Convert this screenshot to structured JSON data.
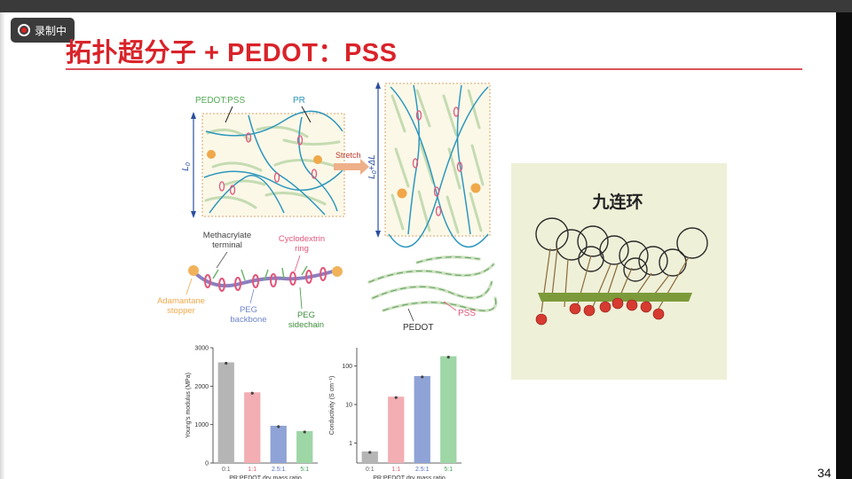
{
  "recorder": {
    "label": "录制中"
  },
  "slide": {
    "title": "拓扑超分子 + PEDOT：PSS",
    "page_number": "34"
  },
  "schematic": {
    "pedot_pss_label": "PEDOT:PSS",
    "pr_label": "PR",
    "l0_label": "L",
    "l0_sub": "0",
    "stretched_label": "L",
    "stretched_sub": "0",
    "stretched_suffix": "+ΔL",
    "stretch_label": "Stretch"
  },
  "molecule": {
    "methacrylate": [
      "Methacrylate",
      "terminal"
    ],
    "cyclodextrin": [
      "Cyclodextrin",
      "ring"
    ],
    "adamantane": [
      "Adamantane",
      "stopper"
    ],
    "peg_backbone": [
      "PEG",
      "backbone"
    ],
    "peg_sidechain": [
      "PEG",
      "sidechain"
    ],
    "pss_label": "PSS",
    "pedot_label": "PEDOT"
  },
  "puzzle": {
    "title": "九连环",
    "ball_color": "#d63a30",
    "bar_color": "#6f8f2a"
  },
  "chart_data": [
    {
      "type": "bar",
      "categories": [
        "0:1",
        "1:1",
        "2.5:1",
        "5:1"
      ],
      "values": [
        2620,
        1840,
        970,
        830
      ],
      "colors": [
        "#b5b5b5",
        "#f2aeb3",
        "#8fa3d6",
        "#9ed6a6"
      ],
      "xlabel": "PR:PEDOT dry mass ratio",
      "ylabel": "Young's modulus (MPa)",
      "ylim": [
        0,
        3000
      ],
      "yticks": [
        "0",
        "1000",
        "2000",
        "3000"
      ],
      "scale": "linear"
    },
    {
      "type": "bar",
      "categories": [
        "0:1",
        "1:1",
        "2.5:1",
        "5:1"
      ],
      "values": [
        0.6,
        16,
        55,
        180
      ],
      "colors": [
        "#b5b5b5",
        "#f2aeb3",
        "#8fa3d6",
        "#9ed6a6"
      ],
      "xlabel": "PR:PEDOT dry mass ratio",
      "ylabel": "Conductivity (S cm⁻¹)",
      "ylim": [
        0.3,
        300
      ],
      "yticks": [
        "1",
        "10",
        "100"
      ],
      "scale": "log"
    }
  ]
}
